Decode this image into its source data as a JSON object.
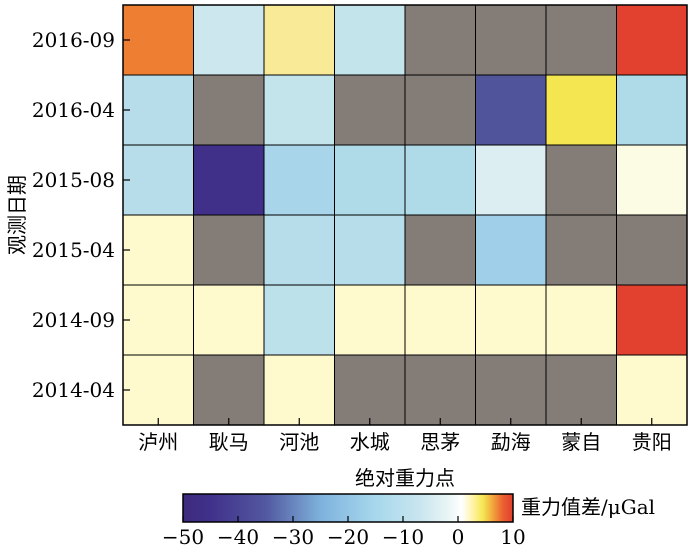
{
  "chart_data": {
    "type": "heatmap",
    "xlabel": "绝对重力点",
    "ylabel": "观测日期",
    "x_categories": [
      "泸州",
      "耿马",
      "河池",
      "水城",
      "思茅",
      "勐海",
      "蒙自",
      "贵阳"
    ],
    "y_categories": [
      "2016-09",
      "2016-04",
      "2015-08",
      "2015-04",
      "2014-09",
      "2014-04"
    ],
    "values": [
      [
        8,
        -6,
        3,
        -7,
        null,
        null,
        null,
        11
      ],
      [
        -9,
        null,
        -7,
        null,
        null,
        -40,
        5,
        -10
      ],
      [
        -9,
        -45,
        -14,
        -10,
        -10,
        -4,
        null,
        0.6
      ],
      [
        1,
        null,
        -9,
        -9,
        null,
        -17,
        null,
        null
      ],
      [
        1,
        1,
        -8,
        1,
        1,
        1,
        1,
        11
      ],
      [
        1,
        null,
        1,
        null,
        null,
        null,
        null,
        1
      ]
    ],
    "missing_color": "#847c77",
    "colorbar": {
      "label": "重力值差/μGal",
      "range": [
        -50,
        10
      ],
      "ticks": [
        -50,
        -40,
        -30,
        -20,
        -10,
        0,
        10
      ],
      "tick_labels": [
        "−50",
        "−40",
        "−30",
        "−20",
        "−10",
        "0",
        "10"
      ]
    }
  }
}
